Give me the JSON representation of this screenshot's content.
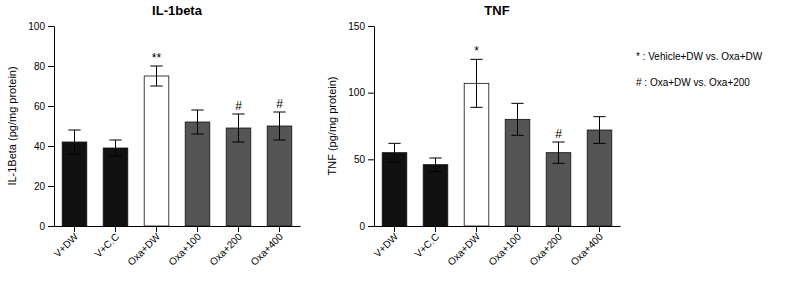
{
  "chart_data": [
    {
      "type": "bar",
      "title": "IL-1beta",
      "ylabel": "IL-1Beta (pg/mg protein)",
      "categories": [
        "V+DW",
        "V+C.C",
        "Oxa+DW",
        "Oxa+100",
        "Oxa+200",
        "Oxa+400"
      ],
      "values": [
        42,
        39,
        75,
        52,
        49,
        50
      ],
      "errors": [
        6,
        4,
        5,
        6,
        7,
        7
      ],
      "colors": [
        "#111111",
        "#111111",
        "#ffffff",
        "#555555",
        "#555555",
        "#555555"
      ],
      "ylim": [
        0,
        100
      ],
      "yticks": [
        0,
        20,
        40,
        60,
        80,
        100
      ],
      "annotations": [
        {
          "category": "Oxa+DW",
          "text": "**"
        },
        {
          "category": "Oxa+200",
          "text": "#"
        },
        {
          "category": "Oxa+400",
          "text": "#"
        }
      ]
    },
    {
      "type": "bar",
      "title": "TNF",
      "ylabel": "TNF (pg/mg protein)",
      "categories": [
        "V+DW",
        "V+C.C",
        "Oxa+DW",
        "Oxa+100",
        "Oxa+200",
        "Oxa+400"
      ],
      "values": [
        55,
        46,
        107,
        80,
        55,
        72
      ],
      "errors": [
        7,
        5,
        18,
        12,
        8,
        10
      ],
      "colors": [
        "#111111",
        "#111111",
        "#ffffff",
        "#555555",
        "#555555",
        "#555555"
      ],
      "ylim": [
        0,
        150
      ],
      "yticks": [
        0,
        50,
        100,
        150
      ],
      "annotations": [
        {
          "category": "Oxa+DW",
          "text": "*"
        },
        {
          "category": "Oxa+200",
          "text": "#"
        }
      ]
    }
  ],
  "annotations": [
    "* : Vehicle+DW vs. Oxa+DW",
    "# : Oxa+DW vs. Oxa+200"
  ]
}
